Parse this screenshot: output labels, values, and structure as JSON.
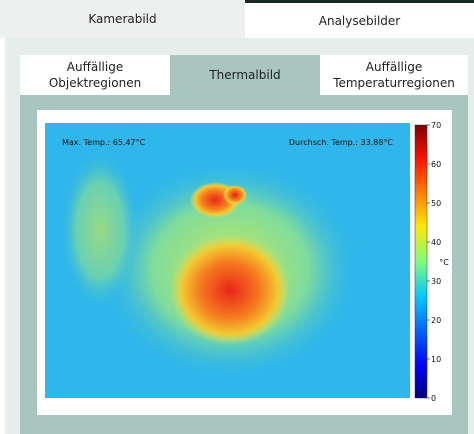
{
  "tabs": [
    "Kamerabild",
    "Analysebilder"
  ],
  "subtabs": [
    "Auffällige Objektregionen",
    "Thermalbild",
    "Auffällige Temperaturregionen"
  ],
  "image": {
    "max_label": "Max. Temp.: 65.47°C",
    "mean_label": "Durchsch. Temp.: 33.88°C"
  },
  "colorbar": {
    "label": "°C",
    "lim": [
      0,
      70
    ],
    "ticks": [
      0,
      10,
      20,
      30,
      40,
      50,
      60,
      70
    ]
  }
}
